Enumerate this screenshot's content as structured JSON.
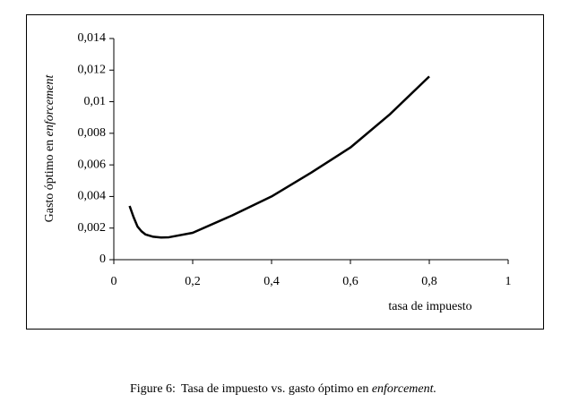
{
  "chart_data": {
    "type": "line",
    "ylabel": "Gasto óptimo en ",
    "ylabel_emphasis": "enforcement",
    "xlabel": "tasa de impuesto",
    "x": [
      0.04,
      0.05,
      0.06,
      0.07,
      0.08,
      0.1,
      0.12,
      0.14,
      0.2,
      0.3,
      0.4,
      0.5,
      0.6,
      0.7,
      0.8
    ],
    "series": [
      {
        "color": "#000000",
        "values": [
          0.0034,
          0.0027,
          0.0021,
          0.0018,
          0.0016,
          0.00145,
          0.0014,
          0.00142,
          0.0017,
          0.0028,
          0.004,
          0.0055,
          0.0071,
          0.0092,
          0.0116
        ]
      }
    ],
    "xlim": [
      0,
      1
    ],
    "xticks": [
      0,
      {
        "value": 0.2,
        "label": "0,2"
      },
      {
        "value": 0.4,
        "label": "0,4"
      },
      {
        "value": 0.6,
        "label": "0,6"
      },
      {
        "value": 0.8,
        "label": "0,8"
      },
      1
    ],
    "ylim": [
      0,
      0.014
    ],
    "yticks": [
      0,
      {
        "value": 0.002,
        "label": "0,002"
      },
      {
        "value": 0.004,
        "label": "0,004"
      },
      {
        "value": 0.006,
        "label": "0,006"
      },
      {
        "value": 0.008,
        "label": "0,008"
      },
      {
        "value": 0.01,
        "label": "0,01"
      },
      {
        "value": 0.012,
        "label": "0,012"
      },
      {
        "value": 0.014,
        "label": "0,014"
      }
    ],
    "grid": false
  },
  "caption": {
    "label": "Figure 6:",
    "text": "Tasa de impuesto vs. gasto óptimo en ",
    "emphasis": "enforcement."
  }
}
